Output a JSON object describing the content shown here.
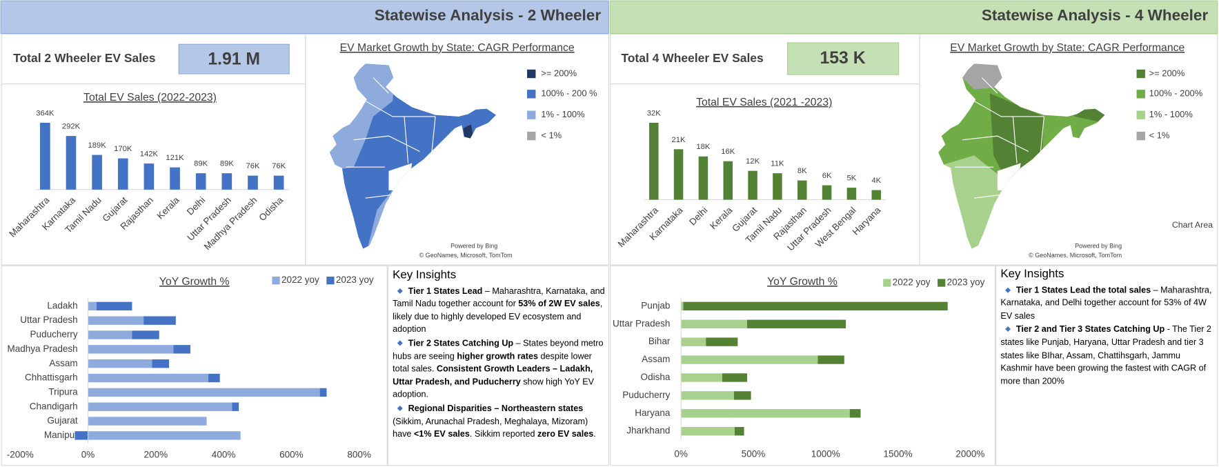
{
  "header": {
    "title_2w": "Statewise Analysis - 2 Wheeler",
    "title_4w": "Statewise Analysis - 4 Wheeler"
  },
  "kpi": [
    {
      "label": "Total 2 Wheeler EV Sales",
      "value": "1.91 M"
    },
    {
      "label": "Total 4 Wheeler EV Sales",
      "value": "153 K"
    }
  ],
  "maps": [
    {
      "title": "EV Market Growth by State: CAGR Performance",
      "legend": [
        {
          "label": ">= 200%",
          "color": "#203864"
        },
        {
          "label": "100% - 200 %",
          "color": "#4472c4"
        },
        {
          "label": "1% - 100%",
          "color": "#8faadc"
        },
        {
          "label": "< 1%",
          "color": "#a5a5a5"
        }
      ],
      "credit_1": "Powered by Bing",
      "credit_2": "© GeoNames, Microsoft, TomTom"
    },
    {
      "title": "EV Market Growth by State: CAGR Performance",
      "legend": [
        {
          "label": ">= 200%",
          "color": "#548235"
        },
        {
          "label": "100% - 200%",
          "color": "#70ad47"
        },
        {
          "label": "1% - 100%",
          "color": "#a9d18e"
        },
        {
          "label": "< 1%",
          "color": "#a5a5a5"
        }
      ],
      "credit_1": "Powered by Bing",
      "credit_2": "© GeoNames, Microsoft, TomTom"
    }
  ],
  "insights": [
    {
      "title": "Key Insights",
      "items": [
        [
          {
            "text": "Tier 1 States Lead",
            "bold": true
          },
          {
            "text": " – Maharashtra, Karnataka, and Tamil Nadu together account for ",
            "bold": false
          },
          {
            "text": "53% of 2W EV sales",
            "bold": true
          },
          {
            "text": ", likely due to highly developed EV ecosystem and adoption",
            "bold": false
          }
        ],
        [
          {
            "text": "Tier 2 States Catching Up",
            "bold": true
          },
          {
            "text": " – States beyond metro hubs are seeing ",
            "bold": false
          },
          {
            "text": "higher growth rates",
            "bold": true
          },
          {
            "text": " despite lower total sales. ",
            "bold": false
          },
          {
            "text": "Consistent Growth Leaders – Ladakh, Uttar Pradesh, and Puducherry",
            "bold": true
          },
          {
            "text": " show high YoY EV adoption.",
            "bold": false
          }
        ],
        [
          {
            "text": "Regional Disparities – Northeastern states",
            "bold": true
          },
          {
            "text": " (Sikkim, Arunachal Pradesh, Meghalaya, Mizoram) have ",
            "bold": false
          },
          {
            "text": "<1% EV sales",
            "bold": true
          },
          {
            "text": ". Sikkim reported ",
            "bold": false
          },
          {
            "text": "zero EV sales",
            "bold": true
          },
          {
            "text": ".",
            "bold": false
          }
        ]
      ]
    },
    {
      "title": "Key Insights",
      "items": [
        [
          {
            "text": "Tier 1 States Lead the total sales",
            "bold": true
          },
          {
            "text": " – Maharashtra, Karnataka, and Delhi together account for 53% of 4W EV sales",
            "bold": false
          }
        ],
        [
          {
            "text": "Tier 2 and Tier 3 States Catching Up",
            "bold": true
          },
          {
            "text": " -  The Tier 2 states like Punjab, Haryana, Uttar Pradesh and tier 3 states like BIhar, Assam, Chattihsgarh, Jammu Kashmir have been growing the fastest with CAGR of more than 200%",
            "bold": false
          }
        ]
      ]
    }
  ],
  "chart_area_label": "Chart Area",
  "chart_data": [
    {
      "type": "column",
      "title": "Total EV Sales (2022-2023)",
      "categories": [
        "Maharashtra",
        "Karnataka",
        "Tamil Nadu",
        "Gujarat",
        "Rajasthan",
        "Kerala",
        "Delhi",
        "Uttar Pradesh",
        "Madhya Pradesh",
        "Odisha"
      ],
      "values": [
        364,
        292,
        189,
        170,
        142,
        121,
        89,
        89,
        76,
        76
      ],
      "value_labels": [
        "364K",
        "292K",
        "189K",
        "170K",
        "142K",
        "121K",
        "89K",
        "89K",
        "76K",
        "76K"
      ],
      "color": "#4472c4"
    },
    {
      "type": "column",
      "title": "Total EV Sales (2021 -2023)",
      "categories": [
        "Maharashtra",
        "Karnataka",
        "Delhi",
        "Kerala",
        "Gujarat",
        "Tamil Nadu",
        "Rajasthan",
        "Uttar Pradesh",
        "West Bengal",
        "Haryana"
      ],
      "values": [
        32,
        21,
        18,
        16,
        12,
        11,
        8,
        6,
        5,
        4
      ],
      "value_labels": [
        "32K",
        "21K",
        "18K",
        "16K",
        "12K",
        "11K",
        "8K",
        "6K",
        "5K",
        "4K"
      ],
      "color": "#548235"
    },
    {
      "type": "stacked_hbar",
      "title": "YoY Growth %",
      "legend": "top-right",
      "categories": [
        "Ladakh",
        "Uttar Pradesh",
        "Puducherry",
        "Madhya Pradesh",
        "Assam",
        "Chhattisgarh",
        "Tripura",
        "Chandigarh",
        "Gujarat",
        "Manipur"
      ],
      "series": [
        {
          "name": "2022 yoy",
          "color": "#8faadc",
          "values": [
            25,
            164,
            130,
            252,
            189,
            355,
            684,
            425,
            350,
            450
          ]
        },
        {
          "name": "2023 yoy",
          "color": "#4472c4",
          "values": [
            105,
            95,
            80,
            50,
            50,
            34,
            20,
            20,
            0,
            -39
          ]
        }
      ],
      "xlim": [
        -200,
        800
      ],
      "xticks": [
        {
          "value": -200,
          "label": "-200%"
        },
        {
          "value": 0,
          "label": "0%"
        },
        {
          "value": 200,
          "label": "200%"
        },
        {
          "value": 400,
          "label": "400%"
        },
        {
          "value": 600,
          "label": "600%"
        },
        {
          "value": 800,
          "label": "800%"
        }
      ]
    },
    {
      "type": "stacked_hbar",
      "title": "YoY Growth %",
      "legend": "top-right",
      "categories": [
        "Punjab",
        "Uttar Pradesh",
        "Bihar",
        "Assam",
        "Odisha",
        "Puducherry",
        "Haryana",
        "Jharkhand"
      ],
      "series": [
        {
          "name": "2022 yoy",
          "color": "#a9d18e",
          "values": [
            16,
            457,
            172,
            946,
            285,
            366,
            1167,
            371
          ]
        },
        {
          "name": "2023 yoy",
          "color": "#548235",
          "values": [
            1828,
            683,
            220,
            183,
            172,
            118,
            75,
            65
          ]
        }
      ],
      "xlim": [
        0,
        2000
      ],
      "xticks": [
        {
          "value": 0,
          "label": "0%"
        },
        {
          "value": 500,
          "label": "500%"
        },
        {
          "value": 1000,
          "label": "1000%"
        },
        {
          "value": 1500,
          "label": "1500%"
        },
        {
          "value": 2000,
          "label": "2000%"
        }
      ]
    }
  ]
}
